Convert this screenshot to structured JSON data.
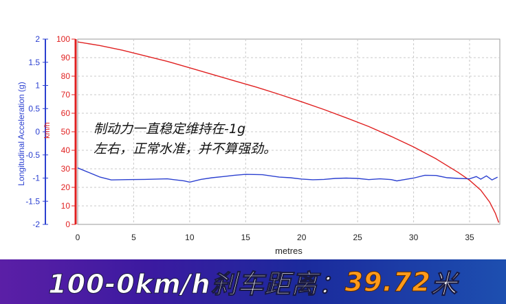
{
  "chart_data": {
    "type": "line",
    "xlabel": "metres",
    "left_axis_label": "Longitudinal Acceleration (g)",
    "left_axis_ticks": [
      "2",
      "1.5",
      "1",
      "0.5",
      "0",
      "-0.5",
      "-1",
      "-1.5",
      "-2"
    ],
    "right_axis_label": "km/h",
    "xlim": [
      0,
      37.7
    ],
    "ylim": [
      0,
      100
    ],
    "x_ticks": [
      0,
      5,
      10,
      15,
      20,
      25,
      30,
      35
    ],
    "y_ticks": [
      0,
      10,
      20,
      30,
      40,
      50,
      60,
      70,
      80,
      90,
      100
    ],
    "grid": true,
    "series": [
      {
        "color": "#e02020",
        "points": [
          [
            0,
            98.5
          ],
          [
            2,
            96.5
          ],
          [
            4,
            94
          ],
          [
            6,
            91
          ],
          [
            8,
            88
          ],
          [
            10,
            84.5
          ],
          [
            12,
            81
          ],
          [
            14,
            77.5
          ],
          [
            16,
            74
          ],
          [
            18,
            70.2
          ],
          [
            20,
            66.2
          ],
          [
            22,
            62
          ],
          [
            24,
            57.5
          ],
          [
            26,
            52.8
          ],
          [
            28,
            47.5
          ],
          [
            30,
            41.8
          ],
          [
            32,
            35.4
          ],
          [
            34,
            28
          ],
          [
            35,
            23.8
          ],
          [
            36,
            18.5
          ],
          [
            36.8,
            12
          ],
          [
            37.3,
            6
          ],
          [
            37.6,
            1
          ]
        ]
      },
      {
        "color": "#2a3fd0",
        "points": [
          [
            0,
            30.5
          ],
          [
            1,
            28
          ],
          [
            2,
            25.5
          ],
          [
            3,
            24
          ],
          [
            4.5,
            24.2
          ],
          [
            6,
            24.3
          ],
          [
            8,
            24.6
          ],
          [
            9.5,
            23.5
          ],
          [
            10,
            22.8
          ],
          [
            11,
            24.3
          ],
          [
            12,
            25.2
          ],
          [
            13,
            25.8
          ],
          [
            14,
            26.5
          ],
          [
            15,
            27
          ],
          [
            16.5,
            26.8
          ],
          [
            18,
            25.5
          ],
          [
            19,
            25.2
          ],
          [
            20,
            24.5
          ],
          [
            21,
            24.1
          ],
          [
            22,
            24.3
          ],
          [
            23,
            24.8
          ],
          [
            24,
            25
          ],
          [
            25,
            24.8
          ],
          [
            26,
            24.2
          ],
          [
            27,
            24.6
          ],
          [
            28,
            24.2
          ],
          [
            28.5,
            23.5
          ],
          [
            29,
            24
          ],
          [
            30,
            25
          ],
          [
            31,
            26.5
          ],
          [
            32,
            26.4
          ],
          [
            33,
            25.2
          ],
          [
            34,
            24.8
          ],
          [
            35,
            24.6
          ],
          [
            35.6,
            25.8
          ],
          [
            36,
            24.4
          ],
          [
            36.5,
            26.2
          ],
          [
            37,
            24
          ],
          [
            37.5,
            25.5
          ]
        ]
      }
    ]
  },
  "annotation": {
    "line1": "制动力一直稳定维持在-1g",
    "line2": "左右，正常水准，并不算强劲。"
  },
  "banner": {
    "prefix": "100-0km/h刹车距离：",
    "value": "39.72",
    "unit": "米"
  }
}
